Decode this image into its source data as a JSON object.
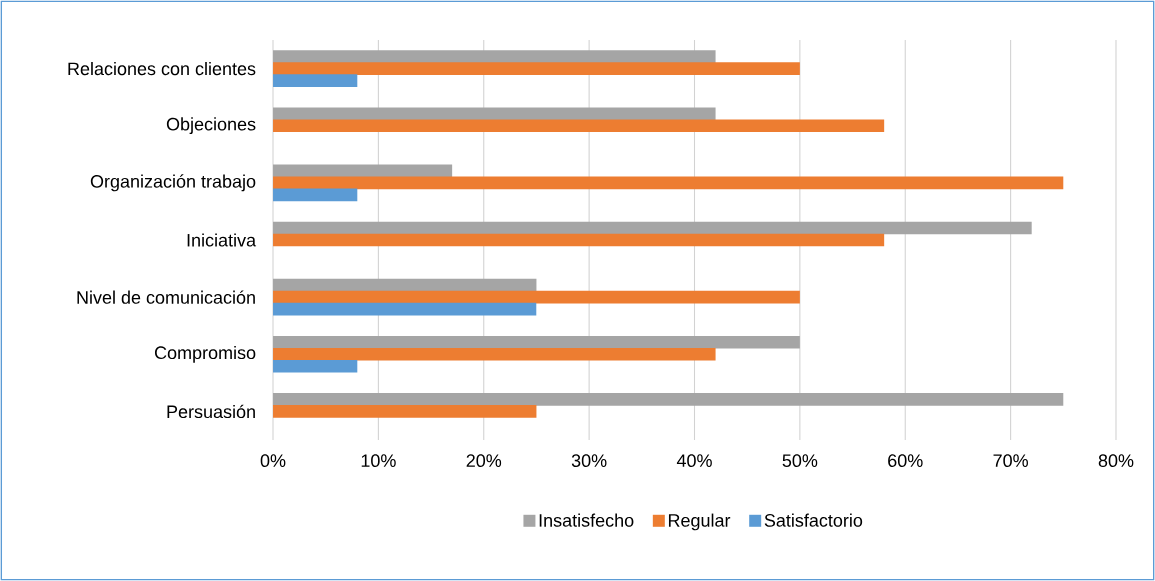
{
  "chart_data": {
    "type": "bar",
    "orientation": "horizontal",
    "categories": [
      "Relaciones con clientes",
      "Objeciones",
      "Organización trabajo",
      "Iniciativa",
      "Nivel de comunicación",
      "Compromiso",
      "Persuasión"
    ],
    "series": [
      {
        "name": "Insatisfecho",
        "color": "#a5a5a5",
        "values": [
          42,
          42,
          17,
          72,
          25,
          50,
          75
        ]
      },
      {
        "name": "Regular",
        "color": "#ed7d31",
        "values": [
          50,
          58,
          75,
          58,
          50,
          42,
          25
        ]
      },
      {
        "name": "Satisfactorio",
        "color": "#5b9bd5",
        "values": [
          8,
          null,
          8,
          null,
          25,
          8,
          null
        ]
      }
    ],
    "xlim": [
      0,
      80
    ],
    "xticks": [
      {
        "value": 0,
        "label": "0%"
      },
      {
        "value": 10,
        "label": "10%"
      },
      {
        "value": 20,
        "label": "20%"
      },
      {
        "value": 30,
        "label": "30%"
      },
      {
        "value": 40,
        "label": "40%"
      },
      {
        "value": 50,
        "label": "50%"
      },
      {
        "value": 60,
        "label": "60%"
      },
      {
        "value": 70,
        "label": "70%"
      },
      {
        "value": 80,
        "label": "80%"
      }
    ],
    "grid": "x",
    "legend": "bottom"
  }
}
